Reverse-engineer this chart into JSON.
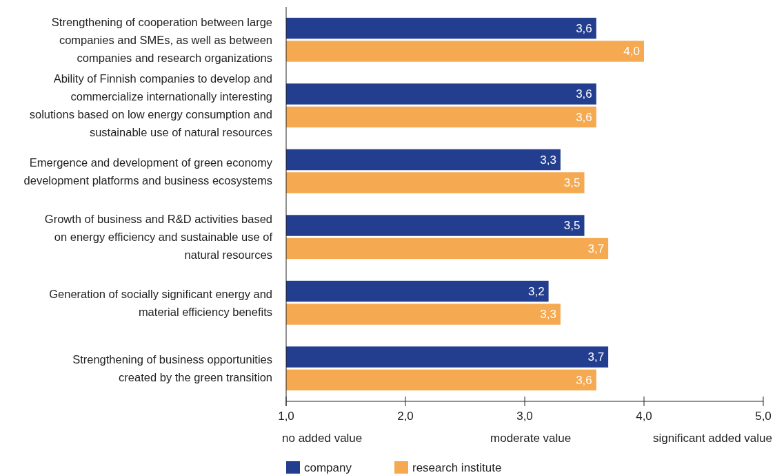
{
  "chart_data": {
    "type": "bar",
    "orientation": "horizontal",
    "categories": [
      "Strengthening of cooperation between large companies and SMEs, as well as between companies and research organizations",
      "Ability of Finnish companies to develop and commercialize internationally interesting solutions based on low energy consumption and sustainable use of natural resources",
      "Emergence and development of green economy development platforms and business ecosystems",
      "Growth of business and R&D activities based on energy efficiency and sustainable use of natural resources",
      "Generation of socially significant energy and material efficiency benefits",
      "Strengthening of business opportunities created by the green transition"
    ],
    "series": [
      {
        "name": "company",
        "color": "#233d8f",
        "values": [
          3.6,
          3.6,
          3.3,
          3.5,
          3.2,
          3.7
        ],
        "value_labels": [
          "3,6",
          "3,6",
          "3,3",
          "3,5",
          "3,2",
          "3,7"
        ]
      },
      {
        "name": "research institute",
        "color": "#f5a950",
        "values": [
          4.0,
          3.6,
          3.5,
          3.7,
          3.3,
          3.6
        ],
        "value_labels": [
          "4,0",
          "3,6",
          "3,5",
          "3,7",
          "3,3",
          "3,6"
        ]
      }
    ],
    "xlim": [
      1,
      5
    ],
    "xticks": [
      {
        "value": 1,
        "label": "1,0"
      },
      {
        "value": 2,
        "label": "2,0"
      },
      {
        "value": 3,
        "label": "3,0"
      },
      {
        "value": 4,
        "label": "4,0"
      },
      {
        "value": 5,
        "label": "5,0"
      }
    ],
    "annotations": [
      "no added value",
      "moderate value",
      "significant added value"
    ],
    "legend": "bottom left"
  }
}
